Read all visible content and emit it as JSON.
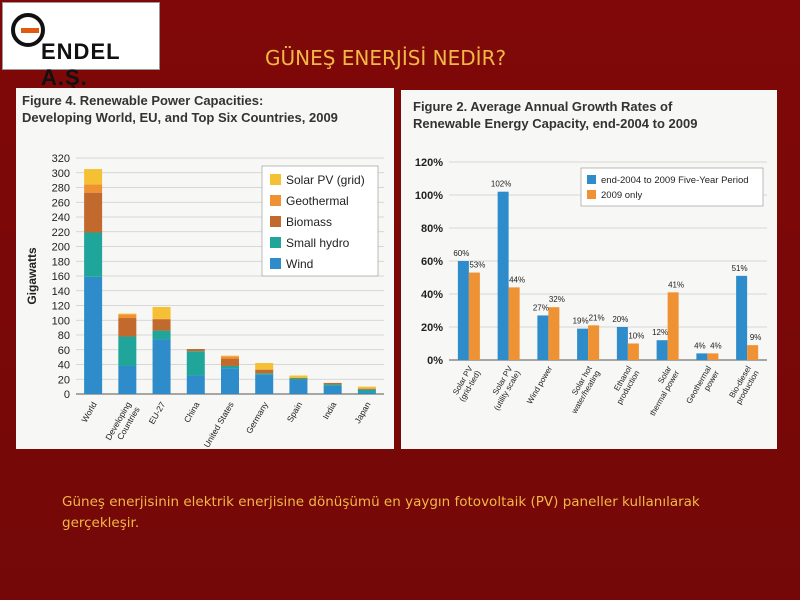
{
  "header": {
    "logo_text": "ENDEL A.Ş.",
    "slide_title": "GÜNEŞ ENERJİSİ NEDİR?"
  },
  "caption": "Güneş enerjisinin elektrik enerjisine dönüşümü en yaygın fotovoltaik (PV) paneller kullanılarak gerçekleşir.",
  "colors": {
    "background": "#7a0a0a",
    "accent_text": "#f2b844",
    "solar": "#f5c033",
    "geothermal": "#ee9233",
    "biomass": "#c2692e",
    "small_hydro": "#1fa59a",
    "wind": "#2e8ccb",
    "growth_5yr": "#2e8ccb",
    "growth_2009": "#ee9233"
  },
  "chart_data": [
    {
      "type": "bar",
      "stacked": true,
      "title": "Figure 4. Renewable Power Capacities:",
      "subtitle": "Developing World, EU, and Top Six Countries, 2009",
      "ylabel": "Gigawatts",
      "ylim": [
        0,
        320
      ],
      "yticks": [
        0,
        20,
        40,
        60,
        80,
        100,
        120,
        140,
        160,
        180,
        200,
        220,
        240,
        260,
        280,
        300,
        320
      ],
      "categories": [
        "World",
        "Developing Countries",
        "EU-27",
        "China",
        "United States",
        "Germany",
        "Spain",
        "India",
        "Japan"
      ],
      "category_labels": [
        [
          "World"
        ],
        [
          "Developing",
          "Countries"
        ],
        [
          "EU-27"
        ],
        [
          "China"
        ],
        [
          "United States"
        ],
        [
          "Germany"
        ],
        [
          "Spain"
        ],
        [
          "India"
        ],
        [
          "Japan"
        ]
      ],
      "legend_position": "top-right",
      "series": [
        {
          "name": "Wind",
          "color_key": "wind",
          "values": [
            159,
            38,
            74,
            25,
            35,
            26,
            19,
            11,
            2
          ]
        },
        {
          "name": "Small hydro",
          "color_key": "small_hydro",
          "values": [
            60,
            40,
            12,
            33,
            3,
            2,
            2,
            2,
            4
          ]
        },
        {
          "name": "Biomass",
          "color_key": "biomass",
          "values": [
            54,
            25,
            15,
            3,
            10,
            5,
            1,
            2,
            1
          ]
        },
        {
          "name": "Geothermal",
          "color_key": "geothermal",
          "values": [
            11,
            5,
            1,
            0,
            3,
            0,
            0,
            0,
            1
          ]
        },
        {
          "name": "Solar PV (grid)",
          "color_key": "solar",
          "values": [
            21,
            1,
            16,
            0,
            1,
            9,
            3,
            0,
            2
          ]
        }
      ]
    },
    {
      "type": "bar",
      "title": "Figure 2. Average Annual Growth Rates of",
      "subtitle": "Renewable Energy Capacity, end-2004 to 2009",
      "ylim": [
        0,
        120
      ],
      "yticks": [
        "0%",
        "20%",
        "40%",
        "60%",
        "80%",
        "100%",
        "120%"
      ],
      "categories": [
        "Solar PV (grid-tied)",
        "Solar PV (utility scale)",
        "Wind power",
        "Solar hot water/heating",
        "Ethanol production",
        "Solar thermal power",
        "Geothermal power",
        "Bio-diesel production"
      ],
      "category_labels": [
        [
          "Solar PV",
          "(grid-tied)"
        ],
        [
          "Solar PV",
          "(utility scale)"
        ],
        [
          "Wind power"
        ],
        [
          "Solar hot",
          "water/heating"
        ],
        [
          "Ethanol",
          "production"
        ],
        [
          "Solar",
          "thermal power"
        ],
        [
          "Geothermal",
          "power"
        ],
        [
          "Bio-diesel",
          "production"
        ]
      ],
      "legend_position": "top-right",
      "series": [
        {
          "name": "end-2004 to 2009 Five-Year Period",
          "color_key": "growth_5yr",
          "values": [
            60,
            102,
            27,
            19,
            20,
            12,
            4,
            51
          ],
          "labels": [
            "60%",
            "102%",
            "27%",
            "19%",
            "20%",
            "12%",
            "4%",
            "51%"
          ]
        },
        {
          "name": "2009 only",
          "color_key": "growth_2009",
          "values": [
            53,
            44,
            32,
            21,
            10,
            41,
            4,
            9
          ],
          "labels": [
            "53%",
            "44%",
            "32%",
            "21%",
            "10%",
            "41%",
            "4%",
            "9%"
          ]
        }
      ]
    }
  ]
}
